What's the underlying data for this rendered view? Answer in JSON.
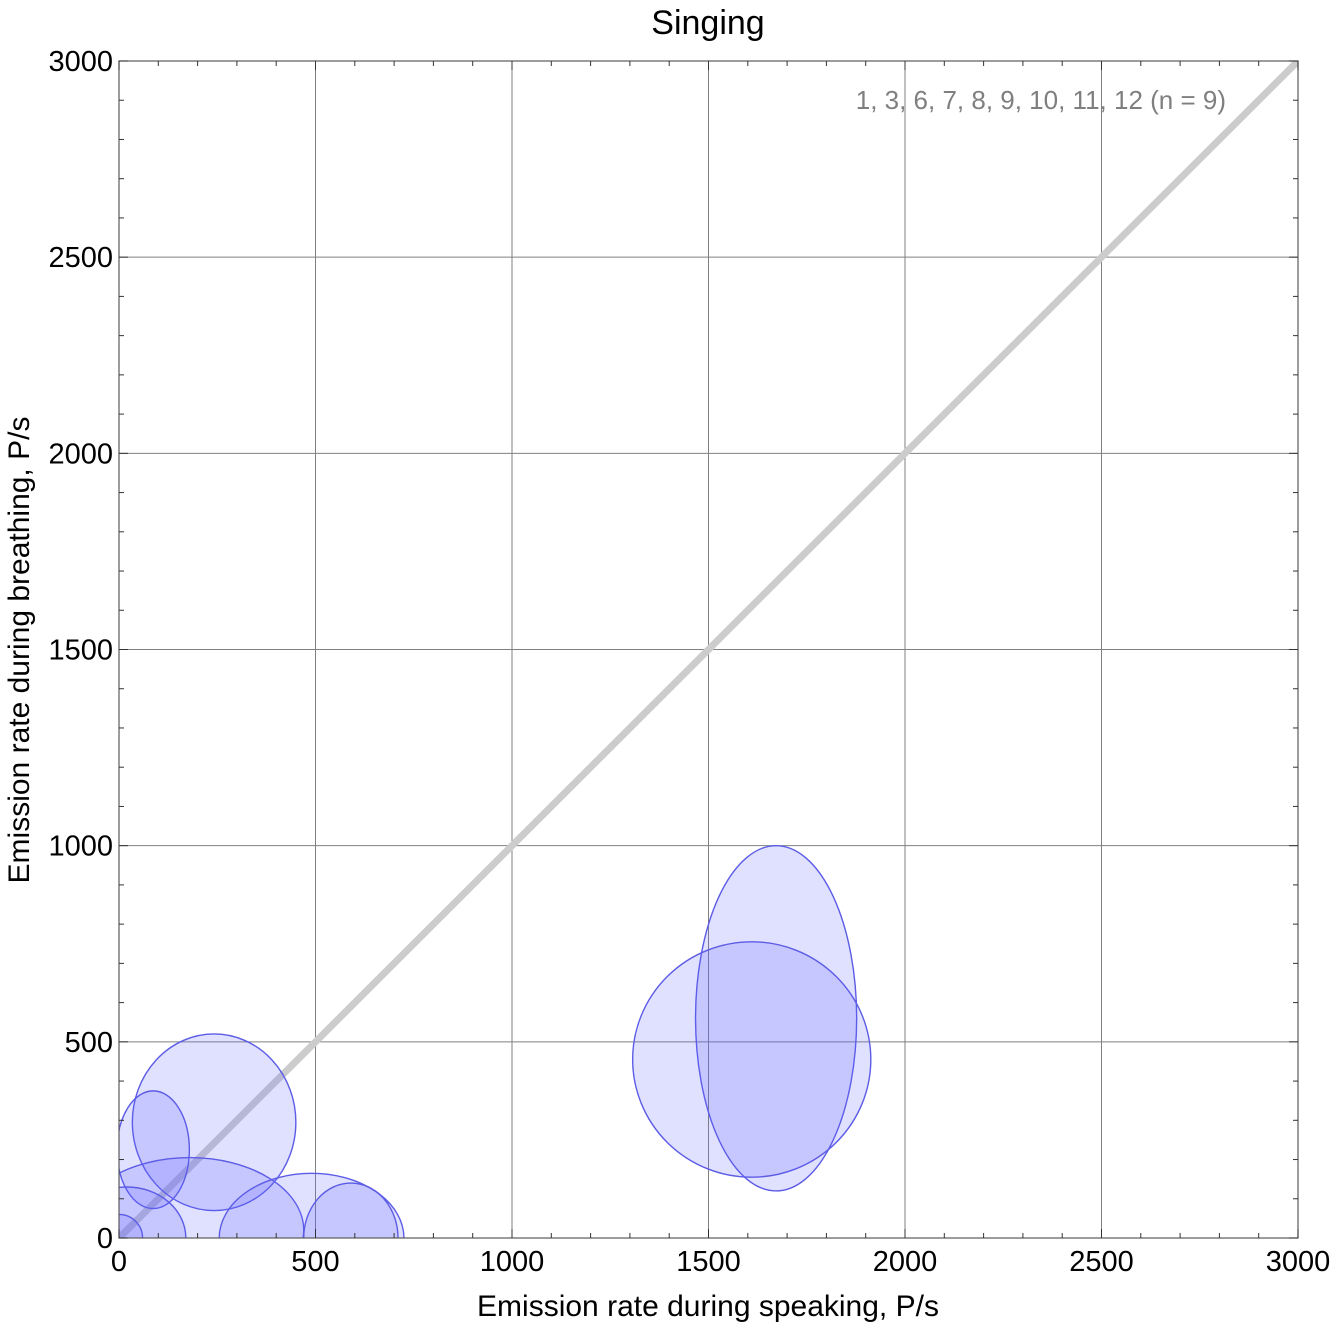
{
  "chart_data": {
    "type": "scatter",
    "title": "Singing",
    "xlabel": "Emission rate during speaking,  P/s",
    "ylabel": "Emission rate during breathing,  P/s",
    "xlim": [
      0,
      3000
    ],
    "ylim": [
      0,
      3000
    ],
    "xticks": [
      "0",
      "500",
      "1000",
      "1500",
      "2000",
      "2500",
      "3000"
    ],
    "yticks": [
      "0",
      "500",
      "1000",
      "1500",
      "2000",
      "2500",
      "3000"
    ],
    "grid": true,
    "annotation": "1, 3, 6, 7, 8, 9, 10, 11, 12  (n = 9)",
    "reference_line": {
      "from": [
        0,
        0
      ],
      "to": [
        3000,
        3000
      ],
      "color": "#cccccc"
    },
    "ellipses": [
      {
        "cx": 1672,
        "cy": 560,
        "rx": 205,
        "ry": 440
      },
      {
        "cx": 1610,
        "cy": 455,
        "rx": 303,
        "ry": 300
      },
      {
        "cx": 242,
        "cy": 295,
        "rx": 208,
        "ry": 225
      },
      {
        "cx": 87,
        "cy": 225,
        "rx": 92,
        "ry": 150
      },
      {
        "cx": 180,
        "cy": 20,
        "rx": 290,
        "ry": 185
      },
      {
        "cx": 490,
        "cy": 0,
        "rx": 235,
        "ry": 165
      },
      {
        "cx": 590,
        "cy": 0,
        "rx": 120,
        "ry": 140
      },
      {
        "cx": 20,
        "cy": 0,
        "rx": 150,
        "ry": 130
      },
      {
        "cx": 0,
        "cy": 0,
        "rx": 60,
        "ry": 60
      }
    ],
    "fill_color": "#6464ff",
    "stroke_color": "#5c5ce6"
  }
}
